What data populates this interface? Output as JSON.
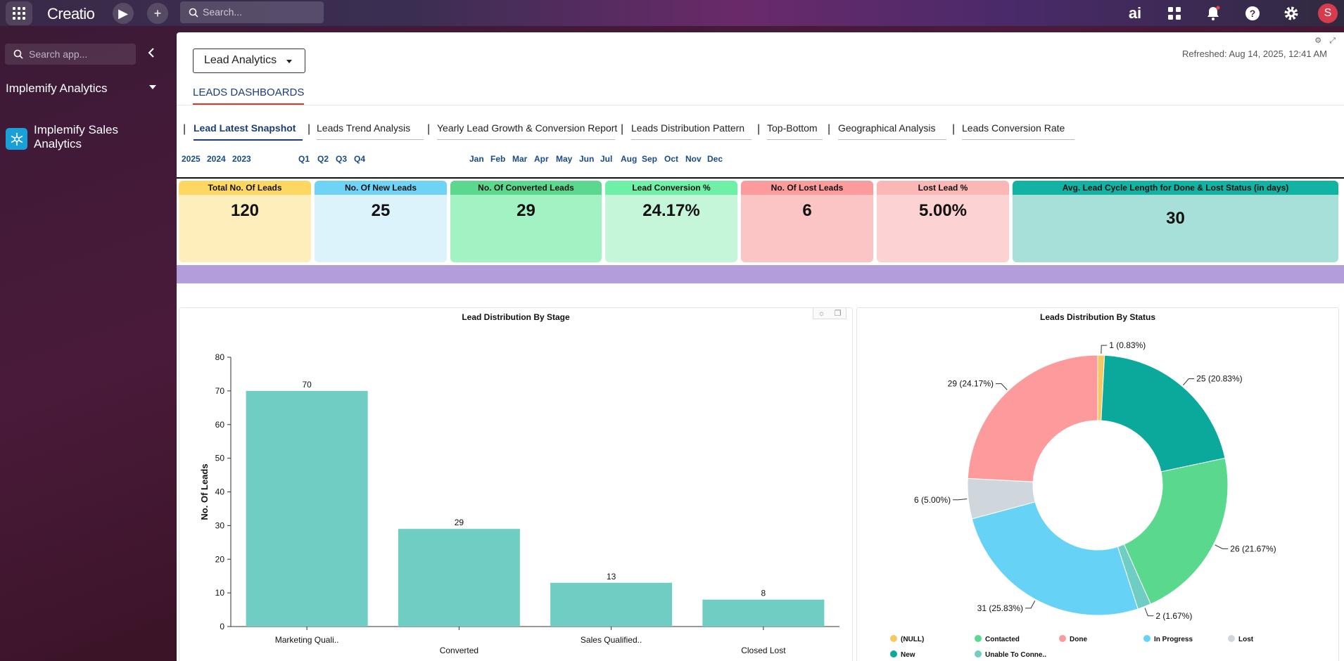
{
  "topbar": {
    "logo": "Creatio",
    "search_placeholder": "Search...",
    "avatar_initial": "S",
    "ai_label": "ai"
  },
  "sidebar": {
    "search_placeholder": "Search app...",
    "app_title": "Implemify Analytics",
    "items": [
      {
        "label": "Implemify Sales Analytics",
        "icon": "snowflake-icon"
      }
    ]
  },
  "header": {
    "dashboard_selector": "Lead Analytics",
    "refreshed": "Refreshed: Aug 14, 2025, 12:41 AM",
    "section_tab": "LEADS DASHBOARDS"
  },
  "tabs": [
    "Lead Latest Snapshot",
    "Leads Trend Analysis",
    "Yearly Lead Growth & Conversion Report",
    "Leads Distribution Pattern",
    "Top-Bottom",
    "Geographical Analysis",
    "Leads Conversion Rate"
  ],
  "filters": {
    "years": [
      "2025",
      "2024",
      "2023"
    ],
    "quarters": [
      "Q1",
      "Q2",
      "Q3",
      "Q4"
    ],
    "months": [
      "Jan",
      "Feb",
      "Mar",
      "Apr",
      "May",
      "Jun",
      "Jul",
      "Aug",
      "Sep",
      "Oct",
      "Nov",
      "Dec"
    ]
  },
  "kpis": [
    {
      "label": "Total No. Of Leads",
      "value": "120",
      "header_color": "#fdd762",
      "body_color": "#fdeebc"
    },
    {
      "label": "No. Of New Leads",
      "value": "25",
      "header_color": "#6fd3f6",
      "body_color": "#dcf3fc"
    },
    {
      "label": "No. Of Converted Leads",
      "value": "29",
      "header_color": "#5cd88e",
      "body_color": "#a3f2c3"
    },
    {
      "label": "Lead Conversion %",
      "value": "24.17%",
      "header_color": "#6ef0a6",
      "body_color": "#c6f6da"
    },
    {
      "label": "No. Of Lost Leads",
      "value": "6",
      "header_color": "#fb9b9b",
      "body_color": "#fcc5c5"
    },
    {
      "label": "Lost Lead %",
      "value": "5.00%",
      "header_color": "#fbb6b6",
      "body_color": "#fdd2d2"
    },
    {
      "label": "Avg. Lead Cycle Length for Done & Lost Status (in days)",
      "value": "30",
      "header_color": "#13b3a4",
      "body_color": "#a7e0d8"
    }
  ],
  "chart_data": [
    {
      "type": "bar",
      "title": "Lead Distribution By Stage",
      "ylabel": "No. Of Leads",
      "xlabel": "",
      "categories": [
        "Marketing Quali..",
        "Converted",
        "Sales Qualified..",
        "Closed Lost"
      ],
      "values": [
        70,
        29,
        13,
        8
      ],
      "ylim": [
        0,
        80
      ],
      "yticks": [
        0,
        10,
        20,
        30,
        40,
        50,
        60,
        70,
        80
      ],
      "color": "#6fcdc3",
      "grid": false
    },
    {
      "type": "pie",
      "title": "Leads Distribution By Status",
      "donut": true,
      "slices": [
        {
          "label": "(NULL)",
          "value": 1,
          "text": "1 (0.83%)",
          "color": "#f6c85f"
        },
        {
          "label": "New",
          "value": 25,
          "text": "25 (20.83%)",
          "color": "#0ba89c"
        },
        {
          "label": "Contacted",
          "value": 26,
          "text": "26 (21.67%)",
          "color": "#5ad98e"
        },
        {
          "label": "Unable To Conne..",
          "value": 2,
          "text": "2 (1.67%)",
          "color": "#6fcdc3"
        },
        {
          "label": "In Progress",
          "value": 31,
          "text": "31 (25.83%)",
          "color": "#66d3f6"
        },
        {
          "label": "Lost",
          "value": 6,
          "text": "6 (5.00%)",
          "color": "#cfd6dc"
        },
        {
          "label": "Done",
          "value": 29,
          "text": "29 (24.17%)",
          "color": "#fc9a9c"
        }
      ],
      "legend": [
        "(NULL)",
        "Contacted",
        "Done",
        "In Progress",
        "Lost",
        "New",
        "Unable To Conne.."
      ],
      "legend_position": "bottom"
    }
  ]
}
